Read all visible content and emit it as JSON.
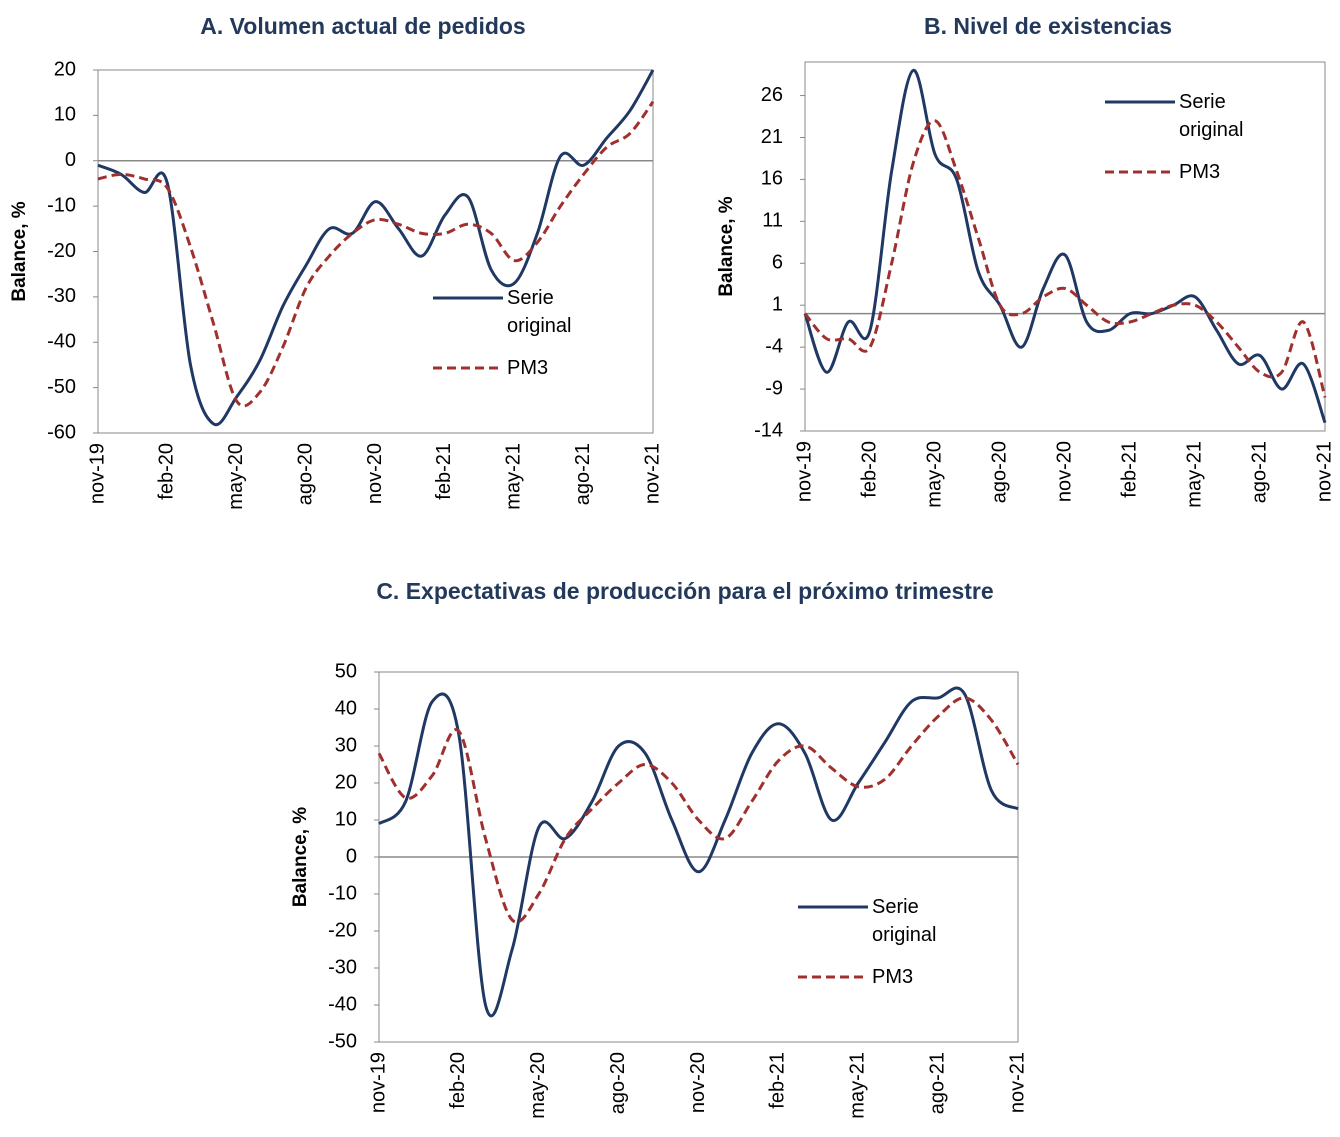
{
  "chart_data": [
    {
      "type": "line",
      "title": "A.  Volumen actual de pedidos",
      "y_label": "Balance, %",
      "categories": [
        "nov-19",
        null,
        null,
        "feb-20",
        null,
        null,
        "may-20",
        null,
        null,
        "ago-20",
        null,
        null,
        "nov-20",
        null,
        null,
        "feb-21",
        null,
        null,
        "may-21",
        null,
        null,
        "ago-21",
        null,
        null,
        "nov-21"
      ],
      "series": [
        {
          "name": "Serie original",
          "color": "#1f3864",
          "dash": "solid",
          "values": [
            -1,
            -3,
            -7,
            -5,
            -45,
            -58,
            -52,
            -44,
            -32,
            -23,
            -15,
            -16,
            -9,
            -15,
            -21,
            -12,
            -8,
            -24,
            -27,
            -16,
            1,
            -1,
            5,
            11,
            20
          ]
        },
        {
          "name": "PM3",
          "color": "#a0302d",
          "dash": "dashed",
          "values": [
            -4,
            -3,
            -4,
            -6,
            -19,
            -36,
            -53,
            -51,
            -41,
            -28,
            -21,
            -16,
            -13,
            -14,
            -16,
            -16,
            -14,
            -16,
            -22,
            -18,
            -10,
            -3,
            3,
            6,
            13
          ]
        }
      ],
      "ylim": [
        -60,
        20
      ],
      "yticks": [
        -60,
        -50,
        -40,
        -30,
        -20,
        -10,
        0,
        10,
        20
      ],
      "legend": "lower right"
    },
    {
      "type": "line",
      "title": "B.  Nivel de existencias",
      "y_label": "Balance, %",
      "categories": [
        "nov-19",
        null,
        null,
        "feb-20",
        null,
        null,
        "may-20",
        null,
        null,
        "ago-20",
        null,
        null,
        "nov-20",
        null,
        null,
        "feb-21",
        null,
        null,
        "may-21",
        null,
        null,
        "ago-21",
        null,
        null,
        "nov-21"
      ],
      "series": [
        {
          "name": "Serie original",
          "color": "#1f3864",
          "dash": "solid",
          "values": [
            0,
            -7,
            -1,
            -2,
            17,
            29,
            19,
            16,
            5,
            1,
            -4,
            3,
            7,
            -1,
            -2,
            0,
            0,
            1,
            2,
            -2,
            -6,
            -5,
            -9,
            -6,
            -13
          ]
        },
        {
          "name": "PM3",
          "color": "#a0302d",
          "dash": "dashed",
          "values": [
            0,
            -3,
            -3,
            -4,
            6,
            18,
            23,
            17,
            9,
            1,
            0,
            2,
            3,
            1,
            -1,
            -1,
            0,
            1,
            1,
            -1,
            -4,
            -7,
            -7,
            -1,
            -10
          ]
        }
      ],
      "ylim": [
        -14,
        30
      ],
      "yticks": [
        -14,
        -9,
        -4,
        1,
        6,
        11,
        16,
        21,
        26
      ],
      "legend": "upper right"
    },
    {
      "type": "line",
      "title": "C.  Expectativas de producción para el próximo trimestre",
      "y_label": "Balance, %",
      "categories": [
        "nov-19",
        null,
        null,
        "feb-20",
        null,
        null,
        "may-20",
        null,
        null,
        "ago-20",
        null,
        null,
        "nov-20",
        null,
        null,
        "feb-21",
        null,
        null,
        "may-21",
        null,
        null,
        "ago-21",
        null,
        null,
        "nov-21"
      ],
      "series": [
        {
          "name": "Serie original",
          "color": "#1f3864",
          "dash": "solid",
          "values": [
            9,
            15,
            42,
            33,
            -40,
            -25,
            8,
            5,
            15,
            30,
            28,
            10,
            -4,
            10,
            28,
            36,
            28,
            10,
            20,
            31,
            42,
            43,
            44,
            18,
            13
          ]
        },
        {
          "name": "PM3",
          "color": "#a0302d",
          "dash": "dashed",
          "values": [
            28,
            16,
            22,
            34,
            5,
            -17,
            -10,
            5,
            13,
            20,
            25,
            20,
            10,
            5,
            15,
            26,
            30,
            24,
            19,
            21,
            30,
            38,
            43,
            37,
            25
          ]
        }
      ],
      "ylim": [
        -50,
        50
      ],
      "yticks": [
        -50,
        -40,
        -30,
        -20,
        -10,
        0,
        10,
        20,
        30,
        40,
        50
      ],
      "legend": "lower right"
    }
  ]
}
